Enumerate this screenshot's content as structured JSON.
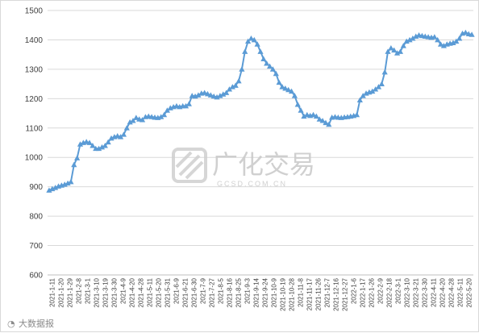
{
  "chart_data": {
    "type": "line",
    "title": "",
    "xlabel": "",
    "ylabel": "",
    "ylim": [
      600,
      1500
    ],
    "yticks": [
      600,
      700,
      800,
      900,
      1000,
      1100,
      1200,
      1300,
      1400,
      1500
    ],
    "grid": "horizontal",
    "legend": "none",
    "line_color": "#5b9bd5",
    "marker": "triangle",
    "x_tick_labels": [
      "2021-1-11",
      "2021-1-20",
      "2021-1-29",
      "2021-2-8",
      "2021-3-1",
      "2021-3-10",
      "2021-3-19",
      "2021-3-30",
      "2021-4-9",
      "2021-4-20",
      "2021-4-28",
      "2021-5-11",
      "2021-5-20",
      "2021-5-31",
      "2021-6-9",
      "2021-6-21",
      "2021-6-30",
      "2021-7-9",
      "2021-7-27",
      "2021-8-5",
      "2021-8-16",
      "2021-8-25",
      "2021-9-3",
      "2021-9-14",
      "2021-9-24",
      "2021-10-9",
      "2021-10-19",
      "2021-10-28",
      "2021-11-8",
      "2021-11-17",
      "2021-11-26",
      "2021-12-7",
      "2021-12-16",
      "2021-12-27",
      "2022-1-6",
      "2022-1-17",
      "2022-1-26",
      "2022-2-9",
      "2022-2-18",
      "2022-3-1",
      "2022-3-10",
      "2022-3-21",
      "2022-3-30",
      "2022-4-11",
      "2022-4-20",
      "2022-4-28",
      "2022-5-11",
      "2022-5-20"
    ],
    "series": [
      {
        "values": [
          888,
          893,
          897,
          902,
          905,
          908,
          912,
          917,
          975,
          998,
          1045,
          1050,
          1053,
          1050,
          1040,
          1030,
          1030,
          1035,
          1040,
          1052,
          1065,
          1070,
          1073,
          1070,
          1078,
          1100,
          1120,
          1125,
          1135,
          1130,
          1128,
          1138,
          1140,
          1138,
          1136,
          1135,
          1138,
          1145,
          1160,
          1168,
          1172,
          1175,
          1172,
          1175,
          1175,
          1182,
          1210,
          1208,
          1212,
          1218,
          1220,
          1216,
          1212,
          1208,
          1205,
          1210,
          1215,
          1220,
          1232,
          1240,
          1245,
          1260,
          1300,
          1360,
          1395,
          1405,
          1400,
          1385,
          1360,
          1335,
          1320,
          1310,
          1300,
          1285,
          1255,
          1240,
          1235,
          1230,
          1225,
          1210,
          1180,
          1160,
          1140,
          1145,
          1142,
          1145,
          1140,
          1130,
          1125,
          1118,
          1112,
          1136,
          1138,
          1136,
          1135,
          1137,
          1138,
          1140,
          1142,
          1145,
          1195,
          1210,
          1218,
          1222,
          1225,
          1232,
          1240,
          1250,
          1290,
          1360,
          1372,
          1365,
          1355,
          1360,
          1380,
          1395,
          1400,
          1405,
          1412,
          1416,
          1414,
          1412,
          1410,
          1408,
          1410,
          1400,
          1385,
          1380,
          1385,
          1388,
          1390,
          1395,
          1405,
          1422,
          1425,
          1420,
          1418
        ]
      }
    ]
  },
  "watermark": {
    "brand": "广化交易",
    "sub": "GCSD.COM.CN"
  },
  "source_label": "大数据报"
}
